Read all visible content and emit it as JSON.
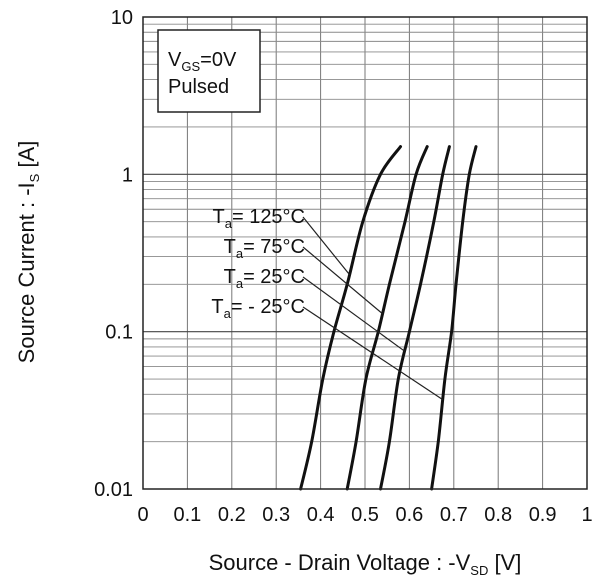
{
  "chart_data": {
    "type": "line",
    "y_scale": "log",
    "x_ticks": [
      "0",
      "0.1",
      "0.2",
      "0.3",
      "0.4",
      "0.5",
      "0.6",
      "0.7",
      "0.8",
      "0.9",
      "1"
    ],
    "y_ticks": [
      "0.01",
      "0.1",
      "1",
      "10"
    ],
    "xlim": [
      0,
      1
    ],
    "ylim": [
      0.01,
      10
    ],
    "grid": true,
    "xlabel": {
      "main": "Source - Drain Voltage : -V",
      "sub": "SD",
      "unit": " [V]"
    },
    "ylabel": {
      "main": "Source Current : -I",
      "sub": "S",
      "unit": " [A]"
    },
    "legend_box": {
      "line1": {
        "v": "V",
        "sub": "GS",
        "rest": "=0V"
      },
      "line2": "Pulsed"
    },
    "series": [
      {
        "name": "Ta= 125°C",
        "label": {
          "t": "T",
          "sub": "a",
          "rest": "= 125°C"
        },
        "points": [
          [
            0.355,
            0.01
          ],
          [
            0.38,
            0.02
          ],
          [
            0.405,
            0.05
          ],
          [
            0.43,
            0.1
          ],
          [
            0.46,
            0.2
          ],
          [
            0.495,
            0.5
          ],
          [
            0.535,
            1.0
          ],
          [
            0.58,
            1.5
          ]
        ]
      },
      {
        "name": "Ta= 75°C",
        "label": {
          "t": "T",
          "sub": "a",
          "rest": "= 75°C"
        },
        "points": [
          [
            0.46,
            0.01
          ],
          [
            0.48,
            0.02
          ],
          [
            0.502,
            0.05
          ],
          [
            0.53,
            0.1
          ],
          [
            0.555,
            0.2
          ],
          [
            0.59,
            0.5
          ],
          [
            0.615,
            1.0
          ],
          [
            0.64,
            1.5
          ]
        ]
      },
      {
        "name": "Ta= 25°C",
        "label": {
          "t": "T",
          "sub": "a",
          "rest": "= 25°C"
        },
        "points": [
          [
            0.535,
            0.01
          ],
          [
            0.555,
            0.02
          ],
          [
            0.575,
            0.05
          ],
          [
            0.6,
            0.1
          ],
          [
            0.625,
            0.2
          ],
          [
            0.655,
            0.5
          ],
          [
            0.675,
            1.0
          ],
          [
            0.69,
            1.5
          ]
        ]
      },
      {
        "name": "Ta= - 25°C",
        "label": {
          "t": "T",
          "sub": "a",
          "rest": "= - 25°C"
        },
        "points": [
          [
            0.65,
            0.01
          ],
          [
            0.665,
            0.02
          ],
          [
            0.68,
            0.05
          ],
          [
            0.695,
            0.1
          ],
          [
            0.705,
            0.2
          ],
          [
            0.72,
            0.5
          ],
          [
            0.735,
            1.0
          ],
          [
            0.75,
            1.5
          ]
        ]
      }
    ]
  }
}
